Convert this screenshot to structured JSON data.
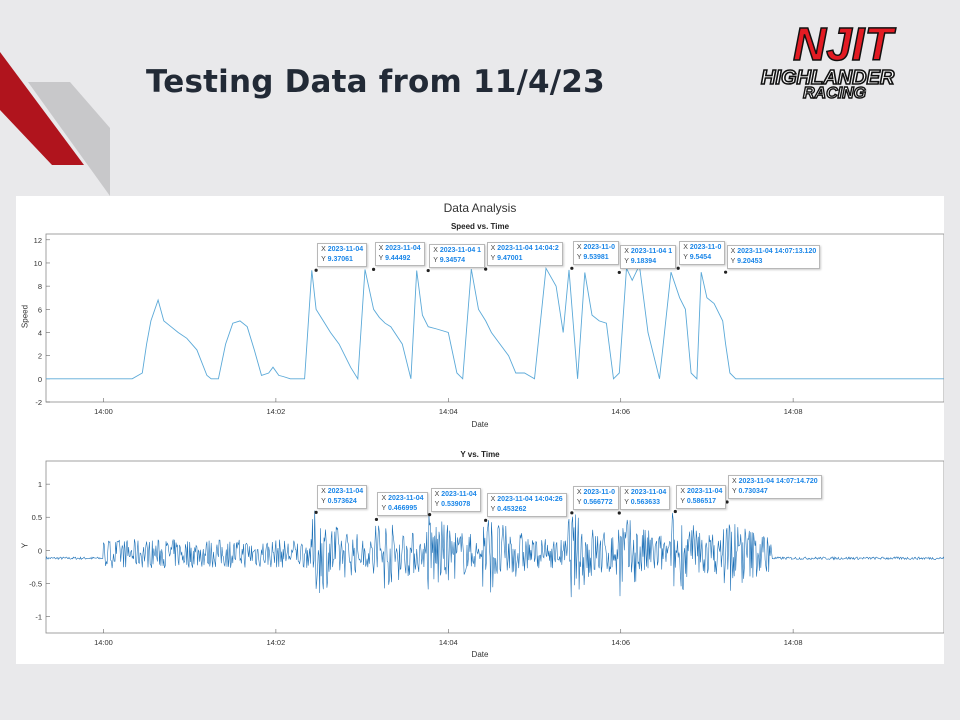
{
  "slide": {
    "title": "Testing Data from 11/4/23",
    "accent_colors": {
      "red": "#b0141d",
      "gray": "#c8c8ca"
    }
  },
  "logo": {
    "text_top": "NJIT",
    "text_mid": "HIGHLANDER",
    "text_bot": "RACING",
    "color_red": "#e31b23",
    "color_black": "#111111"
  },
  "chart_data": [
    {
      "type": "line",
      "figure_title": "Data Analysis",
      "title": "Speed vs. Time",
      "xlabel": "Date",
      "ylabel": "Speed",
      "xlim": [
        "13:59:20",
        "14:09:45"
      ],
      "ylim": [
        -2,
        12.5
      ],
      "x_ticks": [
        "14:00",
        "14:02",
        "14:04",
        "14:06",
        "14:08"
      ],
      "y_ticks": [
        "-2",
        "0",
        "2",
        "4",
        "6",
        "8",
        "10",
        "12"
      ],
      "grid": false,
      "series": [
        {
          "color": "#5ba9d8",
          "x": [
            "13:59:20",
            "14:00:20",
            "14:00:27",
            "14:00:30",
            "14:00:33",
            "14:00:38",
            "14:00:42",
            "14:00:47",
            "14:00:52",
            "14:00:58",
            "14:01:05",
            "14:01:12",
            "14:01:15",
            "14:01:20",
            "14:01:25",
            "14:01:30",
            "14:01:35",
            "14:01:40",
            "14:01:45",
            "14:01:50",
            "14:01:55",
            "14:01:58",
            "14:02:02",
            "14:02:05",
            "14:02:10",
            "14:02:20",
            "14:02:25",
            "14:02:28",
            "14:02:33",
            "14:02:38",
            "14:02:44",
            "14:02:52",
            "14:02:57",
            "14:03:02",
            "14:03:08",
            "14:03:12",
            "14:03:16",
            "14:03:20",
            "14:03:28",
            "14:03:34",
            "14:03:38",
            "14:03:42",
            "14:03:46",
            "14:03:52",
            "14:04:00",
            "14:04:06",
            "14:04:10",
            "14:04:16",
            "14:04:21",
            "14:04:26",
            "14:04:30",
            "14:04:36",
            "14:04:42",
            "14:04:47",
            "14:04:53",
            "14:05:00",
            "14:05:08",
            "14:05:15",
            "14:05:20",
            "14:05:24",
            "14:05:30",
            "14:05:35",
            "14:05:40",
            "14:05:45",
            "14:05:50",
            "14:05:55",
            "14:05:59",
            "14:06:04",
            "14:06:08",
            "14:06:13",
            "14:06:19",
            "14:06:27",
            "14:06:35",
            "14:06:41",
            "14:06:45",
            "14:06:49",
            "14:06:53",
            "14:06:56",
            "14:07:00",
            "14:07:05",
            "14:07:11",
            "14:07:13",
            "14:07:16",
            "14:07:20",
            "14:07:24",
            "14:07:28",
            "14:07:32",
            "14:07:37",
            "14:07:42",
            "14:07:45",
            "14:07:50",
            "14:09:45"
          ],
          "values": [
            0,
            0,
            0.5,
            3,
            5,
            6.8,
            5,
            4.5,
            4,
            3.5,
            2.5,
            0.3,
            0,
            0,
            3,
            4.8,
            5,
            4.5,
            2.5,
            0.3,
            0.5,
            1,
            0.3,
            0.2,
            0,
            0,
            9.37,
            6,
            5,
            4,
            3,
            1,
            0,
            9.44,
            6,
            5.3,
            4.8,
            4.5,
            3,
            0,
            9.35,
            5.5,
            4.5,
            4.3,
            4,
            0.5,
            0,
            9.47,
            6,
            5,
            4,
            3,
            2,
            0.5,
            0.5,
            0,
            9.54,
            8,
            4,
            9.4,
            0,
            9.18,
            5.5,
            5,
            4.8,
            0,
            0.5,
            9.55,
            8.5,
            9.8,
            4,
            0,
            9.2,
            7,
            6,
            0.5,
            0,
            9.2,
            7,
            6.5,
            5,
            3,
            0.5,
            0,
            0,
            0,
            0,
            0,
            0,
            0,
            0,
            0
          ]
        }
      ],
      "data_tips": [
        {
          "x_label": "X 2023-11-04",
          "y_label": "Y 9.37061",
          "x": "14:02:28",
          "y": 9.37061
        },
        {
          "x_label": "X 2023-11-04",
          "y_label": "Y 9.44492",
          "x": "14:03:08",
          "y": 9.44492
        },
        {
          "x_label": "X 2023-11-04 1",
          "y_label": "Y 9.34574",
          "x": "14:03:46",
          "y": 9.34574
        },
        {
          "x_label": "X 2023-11-04 14:04:2",
          "y_label": "Y 9.47001",
          "x": "14:04:26",
          "y": 9.47001
        },
        {
          "x_label": "X 2023-11-0",
          "y_label": "Y 9.53981",
          "x": "14:05:26",
          "y": 9.53981
        },
        {
          "x_label": "X 2023-11-04 1",
          "y_label": "Y 9.18394",
          "x": "14:05:59",
          "y": 9.18394
        },
        {
          "x_label": "X 2023-11-0",
          "y_label": "Y 9.5454",
          "x": "14:06:40",
          "y": 9.5454
        },
        {
          "x_label": "X 2023-11-04 14:07:13.120",
          "y_label": "Y 9.20453",
          "x": "14:07:13",
          "y": 9.20453
        }
      ]
    },
    {
      "type": "line",
      "title": "Y vs. Time",
      "xlabel": "Date",
      "ylabel": "Y",
      "xlim": [
        "13:59:20",
        "14:09:45"
      ],
      "ylim": [
        -1.25,
        1.35
      ],
      "x_ticks": [
        "14:00",
        "14:02",
        "14:04",
        "14:06",
        "14:08"
      ],
      "y_ticks": [
        "-1",
        "-0.5",
        "0",
        "0.5",
        "1"
      ],
      "grid": false,
      "series": [
        {
          "color": "#1f72b8",
          "x_range": [
            "13:59:20",
            "14:09:45"
          ],
          "active_range": [
            "14:00:00",
            "14:07:45"
          ],
          "baseline": -0.12
        }
      ],
      "data_tips": [
        {
          "x_label": "X 2023-11-04",
          "y_label": "Y 0.573624",
          "x": "14:02:28",
          "y": 0.573624
        },
        {
          "x_label": "X 2023-11-04",
          "y_label": "Y 0.466995",
          "x": "14:03:10",
          "y": 0.466995
        },
        {
          "x_label": "X 2023-11-04",
          "y_label": "Y 0.539078",
          "x": "14:03:47",
          "y": 0.539078
        },
        {
          "x_label": "X 2023-11-04 14:04:26",
          "y_label": "Y 0.453262",
          "x": "14:04:26",
          "y": 0.453262
        },
        {
          "x_label": "X 2023-11-0",
          "y_label": "Y 0.566772",
          "x": "14:05:26",
          "y": 0.566772
        },
        {
          "x_label": "X 2023-11-04",
          "y_label": "Y 0.563633",
          "x": "14:05:59",
          "y": 0.563633
        },
        {
          "x_label": "X 2023-11-04",
          "y_label": "Y 0.586517",
          "x": "14:06:38",
          "y": 0.586517
        },
        {
          "x_label": "X 2023-11-04 14:07:14.720",
          "y_label": "Y 0.730347",
          "x": "14:07:14",
          "y": 0.730347
        }
      ]
    }
  ]
}
